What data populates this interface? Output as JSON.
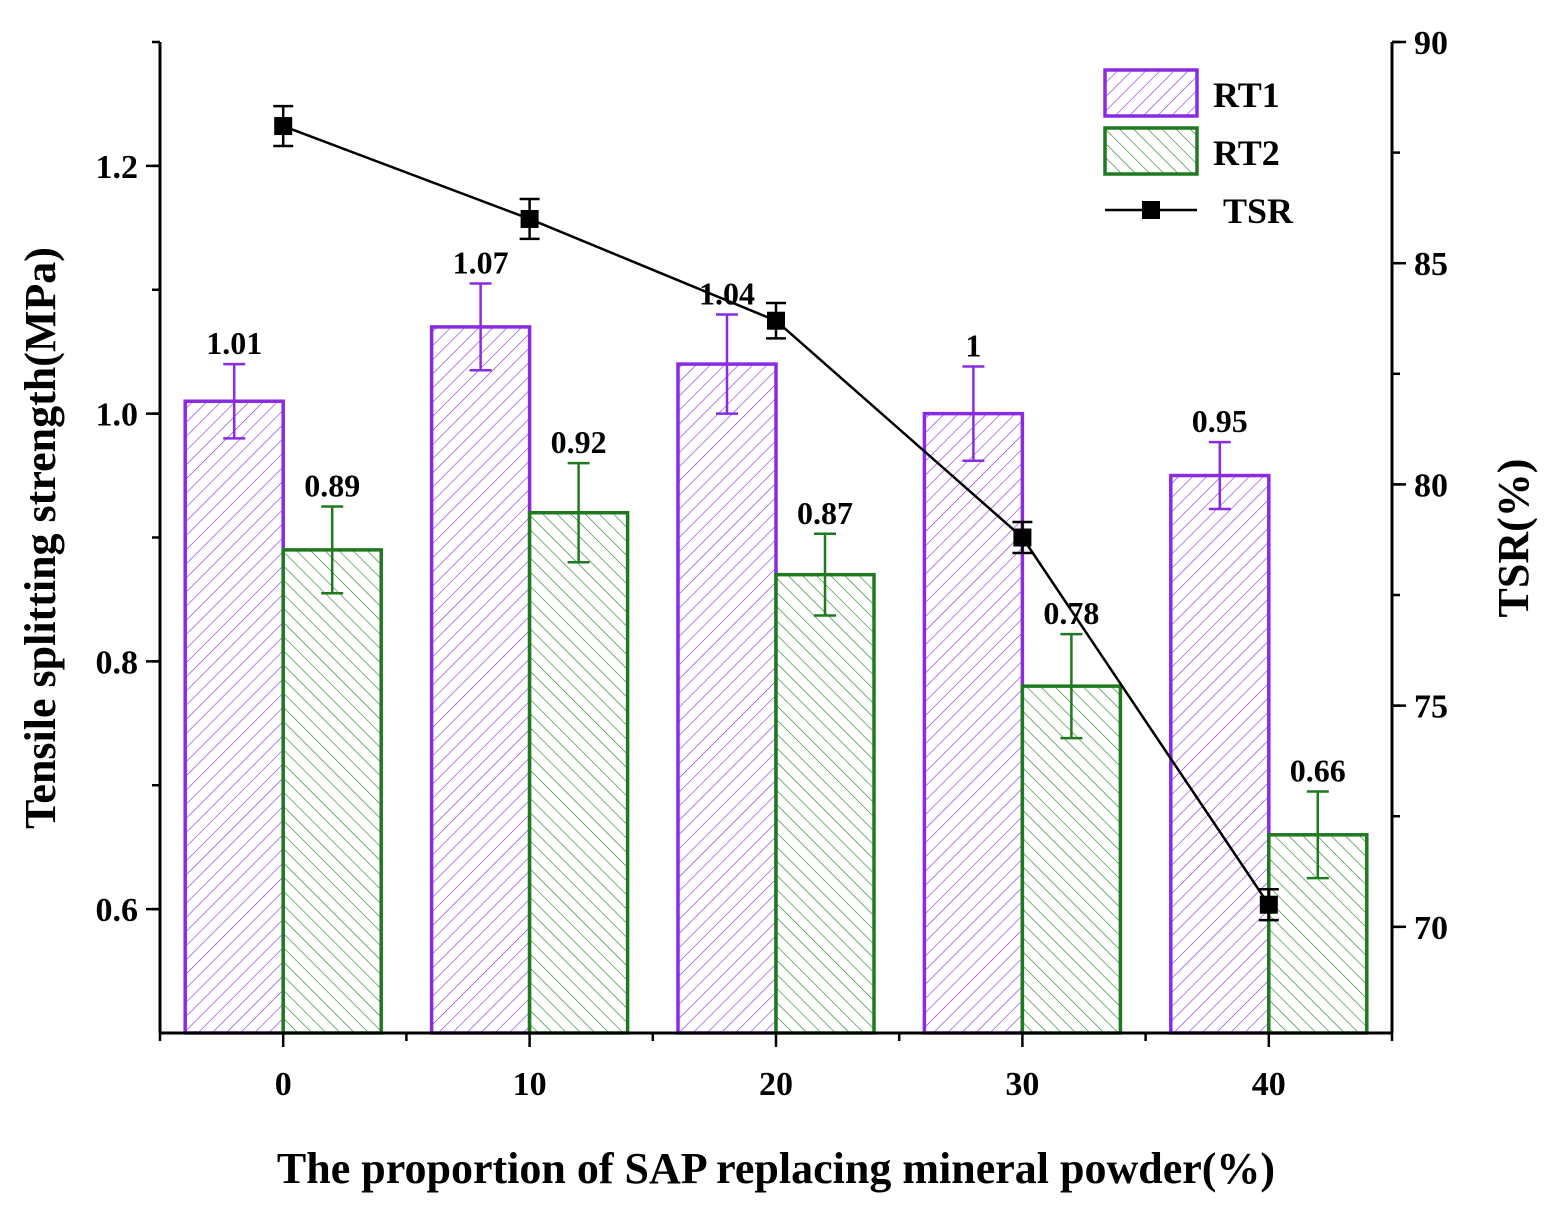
{
  "chart_data": {
    "type": "bar",
    "categories": [
      "0",
      "10",
      "20",
      "30",
      "40"
    ],
    "series": [
      {
        "name": "RT1",
        "axis": "left",
        "values": [
          1.01,
          1.07,
          1.04,
          1.0,
          0.95
        ],
        "errors": [
          0.03,
          0.035,
          0.04,
          0.038,
          0.027
        ],
        "labels": [
          "1.01",
          "1.07",
          "1.04",
          "1",
          "0.95"
        ],
        "color": "#8a2be2"
      },
      {
        "name": "RT2",
        "axis": "left",
        "values": [
          0.89,
          0.92,
          0.87,
          0.78,
          0.66
        ],
        "errors": [
          0.035,
          0.04,
          0.033,
          0.042,
          0.035
        ],
        "labels": [
          "0.89",
          "0.92",
          "0.87",
          "0.78",
          "0.66"
        ],
        "color": "#1f7a1f"
      },
      {
        "name": "TSR",
        "axis": "right",
        "type": "line",
        "values": [
          88.1,
          86.0,
          83.7,
          78.8,
          70.5
        ],
        "errors": [
          0.45,
          0.45,
          0.4,
          0.35,
          0.35
        ],
        "color": "#000000"
      }
    ],
    "xlabel": "The proportion of SAP replacing mineral powder(%)",
    "ylabel": "Tensile splitting strength(MPa)",
    "y2label": "TSR(%)",
    "ylim": [
      0.5,
      1.3
    ],
    "y2lim": [
      67.6,
      90
    ],
    "yticks": [
      "0.6",
      "0.8",
      "1.0",
      "1.2"
    ],
    "y2ticks": [
      "70",
      "75",
      "80",
      "85",
      "90"
    ],
    "legend_position": "top-right",
    "grid": false
  }
}
